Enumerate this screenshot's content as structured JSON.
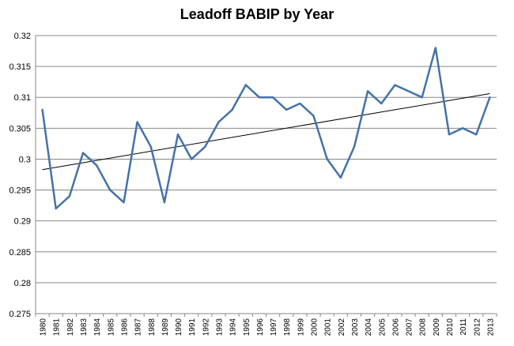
{
  "chart_data": {
    "type": "line",
    "title": "Leadoff BABIP by Year",
    "xlabel": "",
    "ylabel": "",
    "ylim": [
      0.275,
      0.32
    ],
    "yticks": [
      "0.32",
      "0.315",
      "0.31",
      "0.305",
      "0.3",
      "0.295",
      "0.29",
      "0.285",
      "0.28",
      "0.275"
    ],
    "ytick_values": [
      0.32,
      0.315,
      0.31,
      0.305,
      0.3,
      0.295,
      0.29,
      0.285,
      0.28,
      0.275
    ],
    "categories": [
      "1980",
      "1981",
      "1982",
      "1983",
      "1984",
      "1985",
      "1986",
      "1987",
      "1988",
      "1989",
      "1990",
      "1991",
      "1992",
      "1993",
      "1994",
      "1995",
      "1996",
      "1997",
      "1998",
      "1999",
      "2000",
      "2001",
      "2002",
      "2003",
      "2004",
      "2005",
      "2006",
      "2007",
      "2008",
      "2009",
      "2010",
      "2011",
      "2012",
      "2013"
    ],
    "series": [
      {
        "values": [
          0.308,
          0.292,
          0.294,
          0.301,
          0.299,
          0.295,
          0.293,
          0.306,
          0.302,
          0.293,
          0.304,
          0.3,
          0.302,
          0.306,
          0.308,
          0.312,
          0.31,
          0.31,
          0.308,
          0.309,
          0.307,
          0.3,
          0.297,
          0.302,
          0.311,
          0.309,
          0.312,
          0.311,
          0.31,
          0.318,
          0.304,
          0.305,
          0.304,
          0.31
        ],
        "color": "#4472A8"
      }
    ],
    "trendline": {
      "type": "linear",
      "start": 0.2983,
      "end": 0.3106,
      "color": "#000000"
    },
    "grid": true,
    "legend": "none"
  }
}
